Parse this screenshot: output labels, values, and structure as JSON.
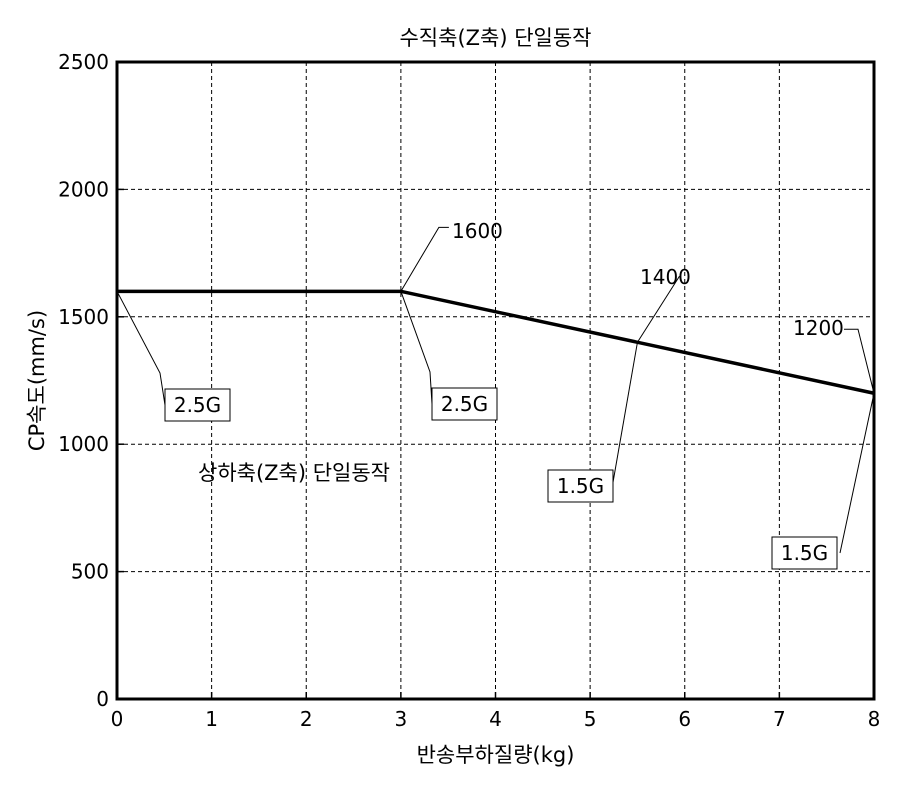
{
  "chart_data": {
    "type": "line",
    "title": "수직축(Z축) 단일동작",
    "xlabel": "반송부하질량(kg)",
    "ylabel": "CP속도(mm/s)",
    "xlim": [
      0,
      8
    ],
    "ylim": [
      0,
      2500
    ],
    "x_ticks": [
      0,
      1,
      2,
      3,
      4,
      5,
      6,
      7,
      8
    ],
    "y_ticks": [
      0,
      500,
      1000,
      1500,
      2000,
      2500
    ],
    "grid": true,
    "series": [
      {
        "x": [
          0,
          3,
          8
        ],
        "y": [
          1600,
          1600,
          1200
        ]
      }
    ],
    "point_labels": [
      {
        "text": "1600",
        "x": 3,
        "y": 1600
      },
      {
        "text": "1400",
        "x": 5.5,
        "y": 1400
      },
      {
        "text": "1200",
        "x": 8,
        "y": 1200
      }
    ],
    "accel_labels": [
      {
        "text": "2.5G",
        "x": 0,
        "y": 1600
      },
      {
        "text": "2.5G",
        "x": 3,
        "y": 1600
      },
      {
        "text": "1.5G",
        "x": 5.5,
        "y": 1400
      },
      {
        "text": "1.5G",
        "x": 8,
        "y": 1200
      }
    ],
    "inline_label": "상하축(Z축) 단일동작"
  }
}
